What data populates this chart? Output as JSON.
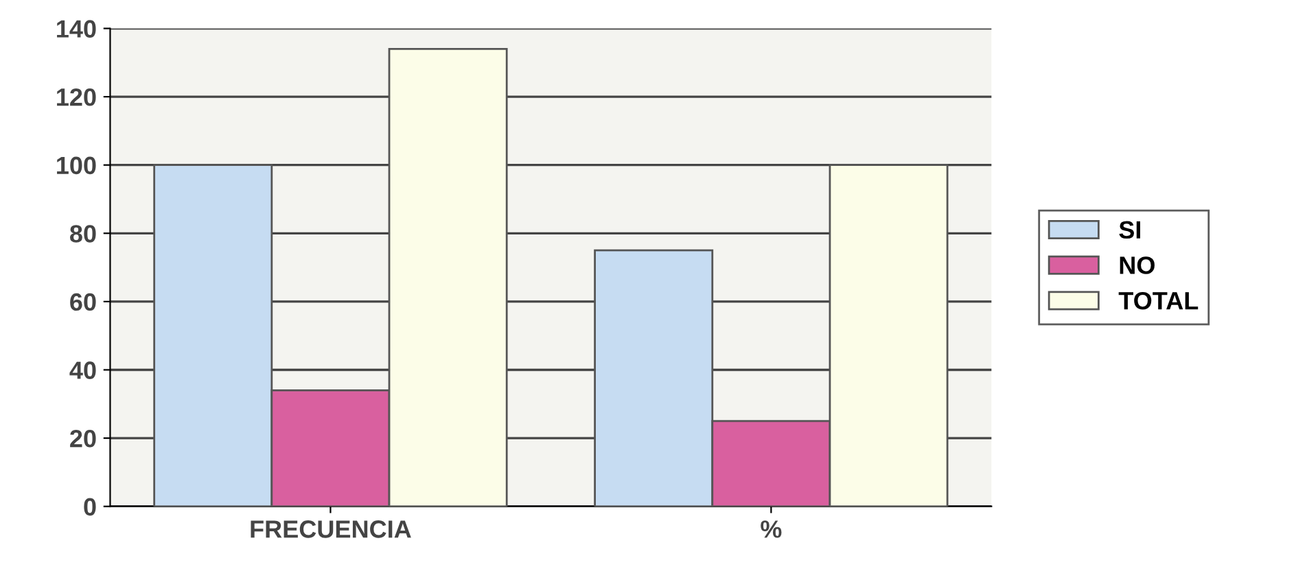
{
  "chart_data": {
    "type": "bar",
    "categories": [
      "FRECUENCIA",
      "%"
    ],
    "series": [
      {
        "name": "SI",
        "color": "#c6dcf2",
        "values": [
          100,
          75
        ]
      },
      {
        "name": "NO",
        "color": "#d9609f",
        "values": [
          34,
          25
        ]
      },
      {
        "name": "TOTAL",
        "color": "#fcfde8",
        "values": [
          134,
          100
        ]
      }
    ],
    "ylim": [
      0,
      140
    ],
    "yticks": [
      0,
      20,
      40,
      60,
      80,
      100,
      120,
      140
    ],
    "grid": "y",
    "legend": "right"
  }
}
